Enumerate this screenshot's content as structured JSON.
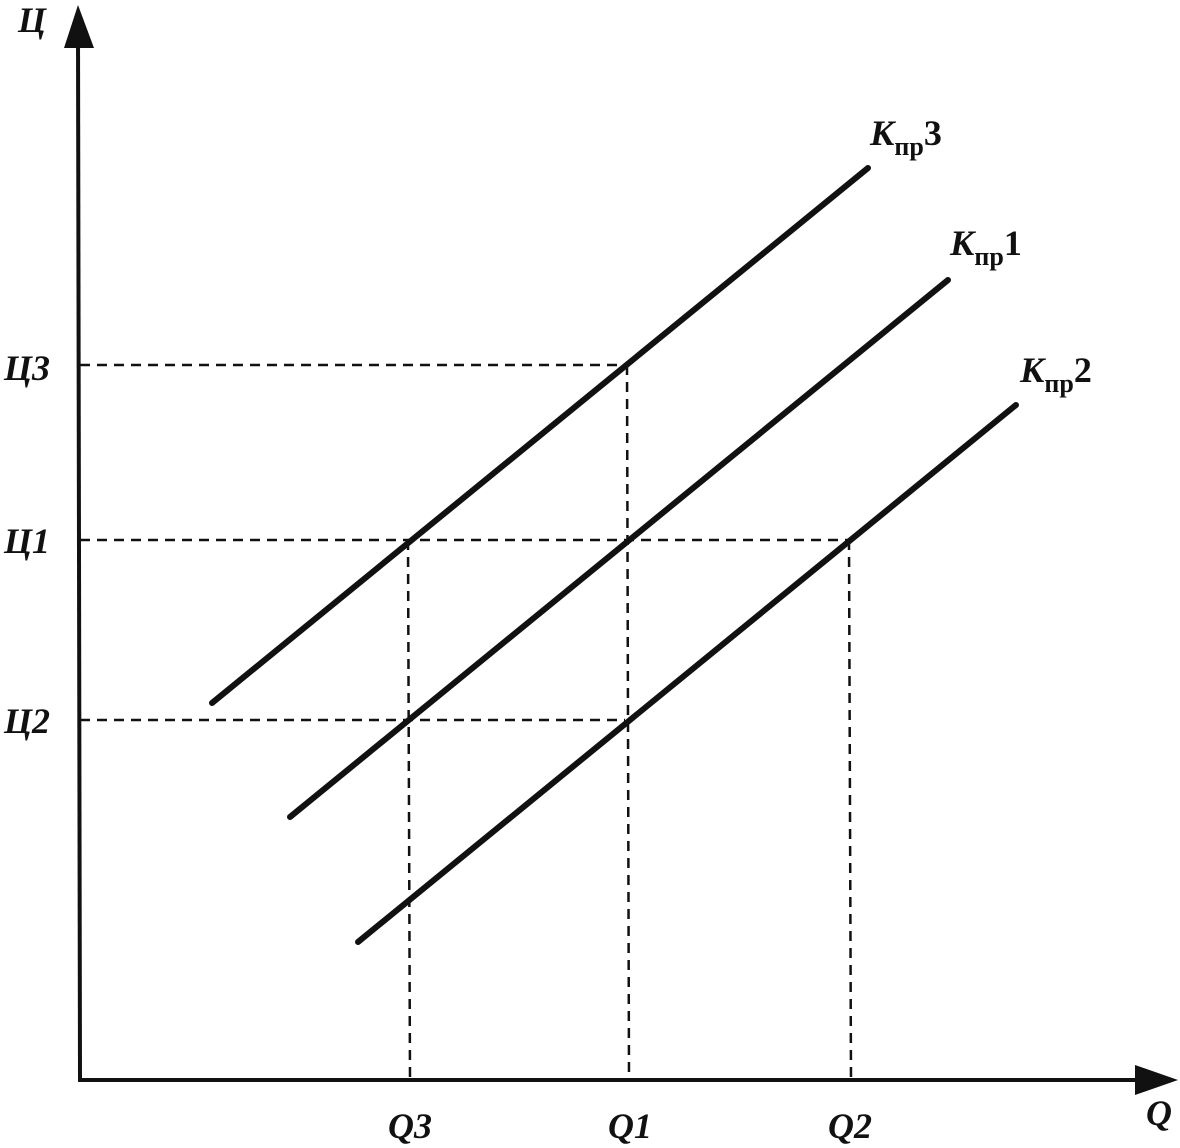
{
  "axes": {
    "y_label": "Ц",
    "x_label": "Q"
  },
  "price_levels": [
    "Ц3",
    "Ц1",
    "Ц2"
  ],
  "quantity_levels": [
    "Q3",
    "Q1",
    "Q2"
  ],
  "curves": [
    {
      "letter": "К",
      "subscript": "пр",
      "number": "3"
    },
    {
      "letter": "К",
      "subscript": "пр",
      "number": "1"
    },
    {
      "letter": "К",
      "subscript": "пр",
      "number": "2"
    }
  ]
}
